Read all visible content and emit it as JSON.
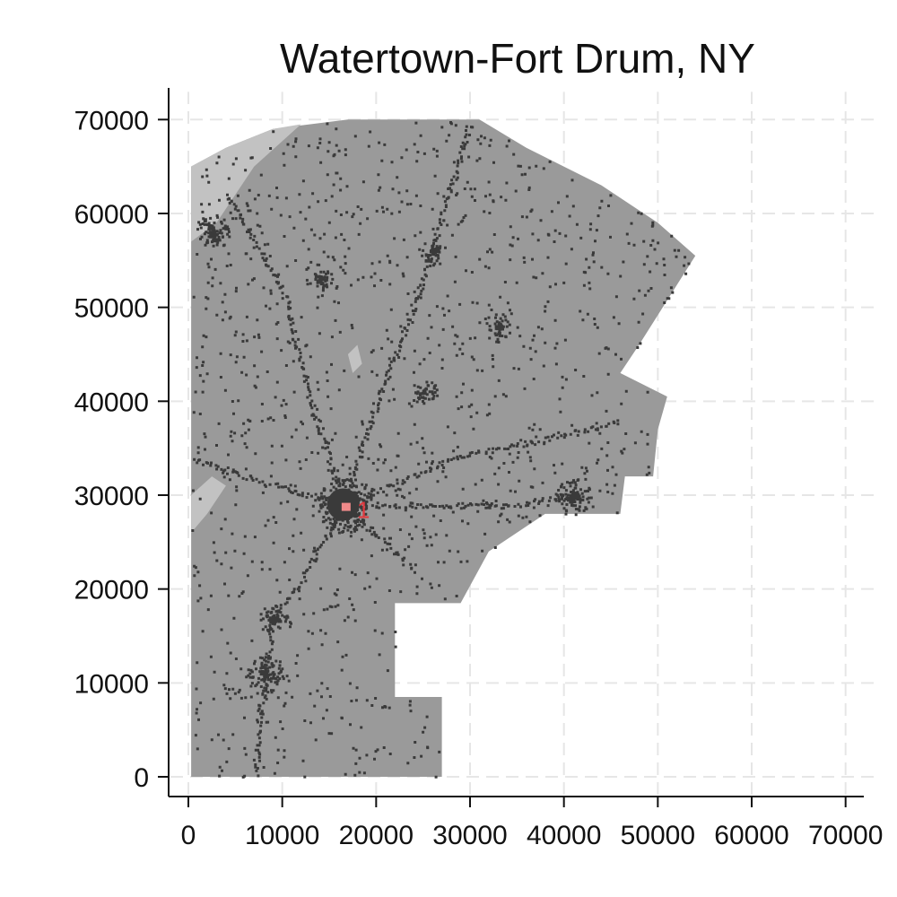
{
  "title": "Watertown-Fort Drum, NY",
  "colors": {
    "background": "#ffffff",
    "grid": "#e6e6e6",
    "land": "#9a9a9a",
    "water": "#c2c2c2",
    "roads": "#3a3a3a",
    "highlight": "#e0393e",
    "highlight_fill": "#f08a8a"
  },
  "chart_data": {
    "type": "map",
    "title": "Watertown-Fort Drum, NY",
    "xlabel": "",
    "ylabel": "",
    "xlim": [
      0,
      72000
    ],
    "ylim": [
      0,
      72000
    ],
    "grid": true,
    "x_ticks": [
      0,
      10000,
      20000,
      30000,
      40000,
      50000,
      60000,
      70000
    ],
    "y_ticks": [
      0,
      10000,
      20000,
      30000,
      40000,
      50000,
      60000,
      70000
    ],
    "x_tick_labels": [
      "0",
      "10000",
      "20000",
      "30000",
      "40000",
      "50000",
      "60000",
      "70000"
    ],
    "y_tick_labels": [
      "0",
      "10000",
      "20000",
      "30000",
      "40000",
      "50000",
      "60000",
      "70000"
    ],
    "region_outline": [
      [
        300,
        65000
      ],
      [
        4000,
        67000
      ],
      [
        9000,
        69000
      ],
      [
        17000,
        70000
      ],
      [
        31000,
        70000
      ],
      [
        36000,
        67000
      ],
      [
        44000,
        63000
      ],
      [
        50000,
        59000
      ],
      [
        54000,
        55500
      ],
      [
        48000,
        46000
      ],
      [
        46000,
        43000
      ],
      [
        51000,
        40500
      ],
      [
        50000,
        37000
      ],
      [
        49500,
        32000
      ],
      [
        46500,
        32000
      ],
      [
        46000,
        28000
      ],
      [
        38000,
        28000
      ],
      [
        32000,
        24000
      ],
      [
        29000,
        18500
      ],
      [
        22000,
        18500
      ],
      [
        22000,
        8500
      ],
      [
        27000,
        8500
      ],
      [
        27000,
        0
      ],
      [
        300,
        0
      ]
    ],
    "water_bodies": [
      [
        [
          300,
          65000
        ],
        [
          4000,
          67000
        ],
        [
          9000,
          69000
        ],
        [
          12000,
          69500
        ],
        [
          7000,
          65000
        ],
        [
          3000,
          59000
        ],
        [
          300,
          57000
        ]
      ],
      [
        [
          300,
          26000
        ],
        [
          2000,
          28000
        ],
        [
          4000,
          31000
        ],
        [
          2500,
          32000
        ],
        [
          300,
          30000
        ]
      ],
      [
        [
          17500,
          43000
        ],
        [
          18500,
          44000
        ],
        [
          18000,
          46000
        ],
        [
          17000,
          45000
        ]
      ]
    ],
    "clusters": [
      {
        "x": 16500,
        "y": 29000,
        "radius": 3000,
        "density": 3.0
      },
      {
        "x": 41000,
        "y": 30000,
        "radius": 2000,
        "density": 1.5
      },
      {
        "x": 8000,
        "y": 11000,
        "radius": 2000,
        "density": 1.5
      },
      {
        "x": 9000,
        "y": 17000,
        "radius": 1600,
        "density": 1.2
      },
      {
        "x": 2500,
        "y": 58000,
        "radius": 2000,
        "density": 1.3
      },
      {
        "x": 33000,
        "y": 48000,
        "radius": 1600,
        "density": 1.0
      },
      {
        "x": 26000,
        "y": 56000,
        "radius": 1500,
        "density": 1.0
      },
      {
        "x": 25000,
        "y": 41000,
        "radius": 1500,
        "density": 1.0
      },
      {
        "x": 14000,
        "y": 53000,
        "radius": 1500,
        "density": 1.0
      }
    ],
    "road_paths": [
      [
        [
          16500,
          29000
        ],
        [
          6000,
          32000
        ],
        [
          300,
          34000
        ]
      ],
      [
        [
          16500,
          29000
        ],
        [
          28000,
          34000
        ],
        [
          38000,
          36000
        ],
        [
          46000,
          38000
        ]
      ],
      [
        [
          16500,
          29000
        ],
        [
          12000,
          21000
        ],
        [
          9000,
          17000
        ],
        [
          8000,
          11000
        ],
        [
          7000,
          0
        ]
      ],
      [
        [
          16500,
          29000
        ],
        [
          24000,
          22000
        ]
      ],
      [
        [
          16500,
          29000
        ],
        [
          34000,
          29000
        ],
        [
          41000,
          30000
        ]
      ],
      [
        [
          16500,
          29000
        ],
        [
          20000,
          40000
        ],
        [
          24000,
          50000
        ],
        [
          27000,
          60000
        ],
        [
          30000,
          70000
        ]
      ],
      [
        [
          16500,
          29000
        ],
        [
          13000,
          40000
        ],
        [
          10000,
          52000
        ],
        [
          4000,
          62000
        ]
      ]
    ],
    "highlight": {
      "label": "1",
      "x": 16800,
      "y": 28700
    }
  }
}
